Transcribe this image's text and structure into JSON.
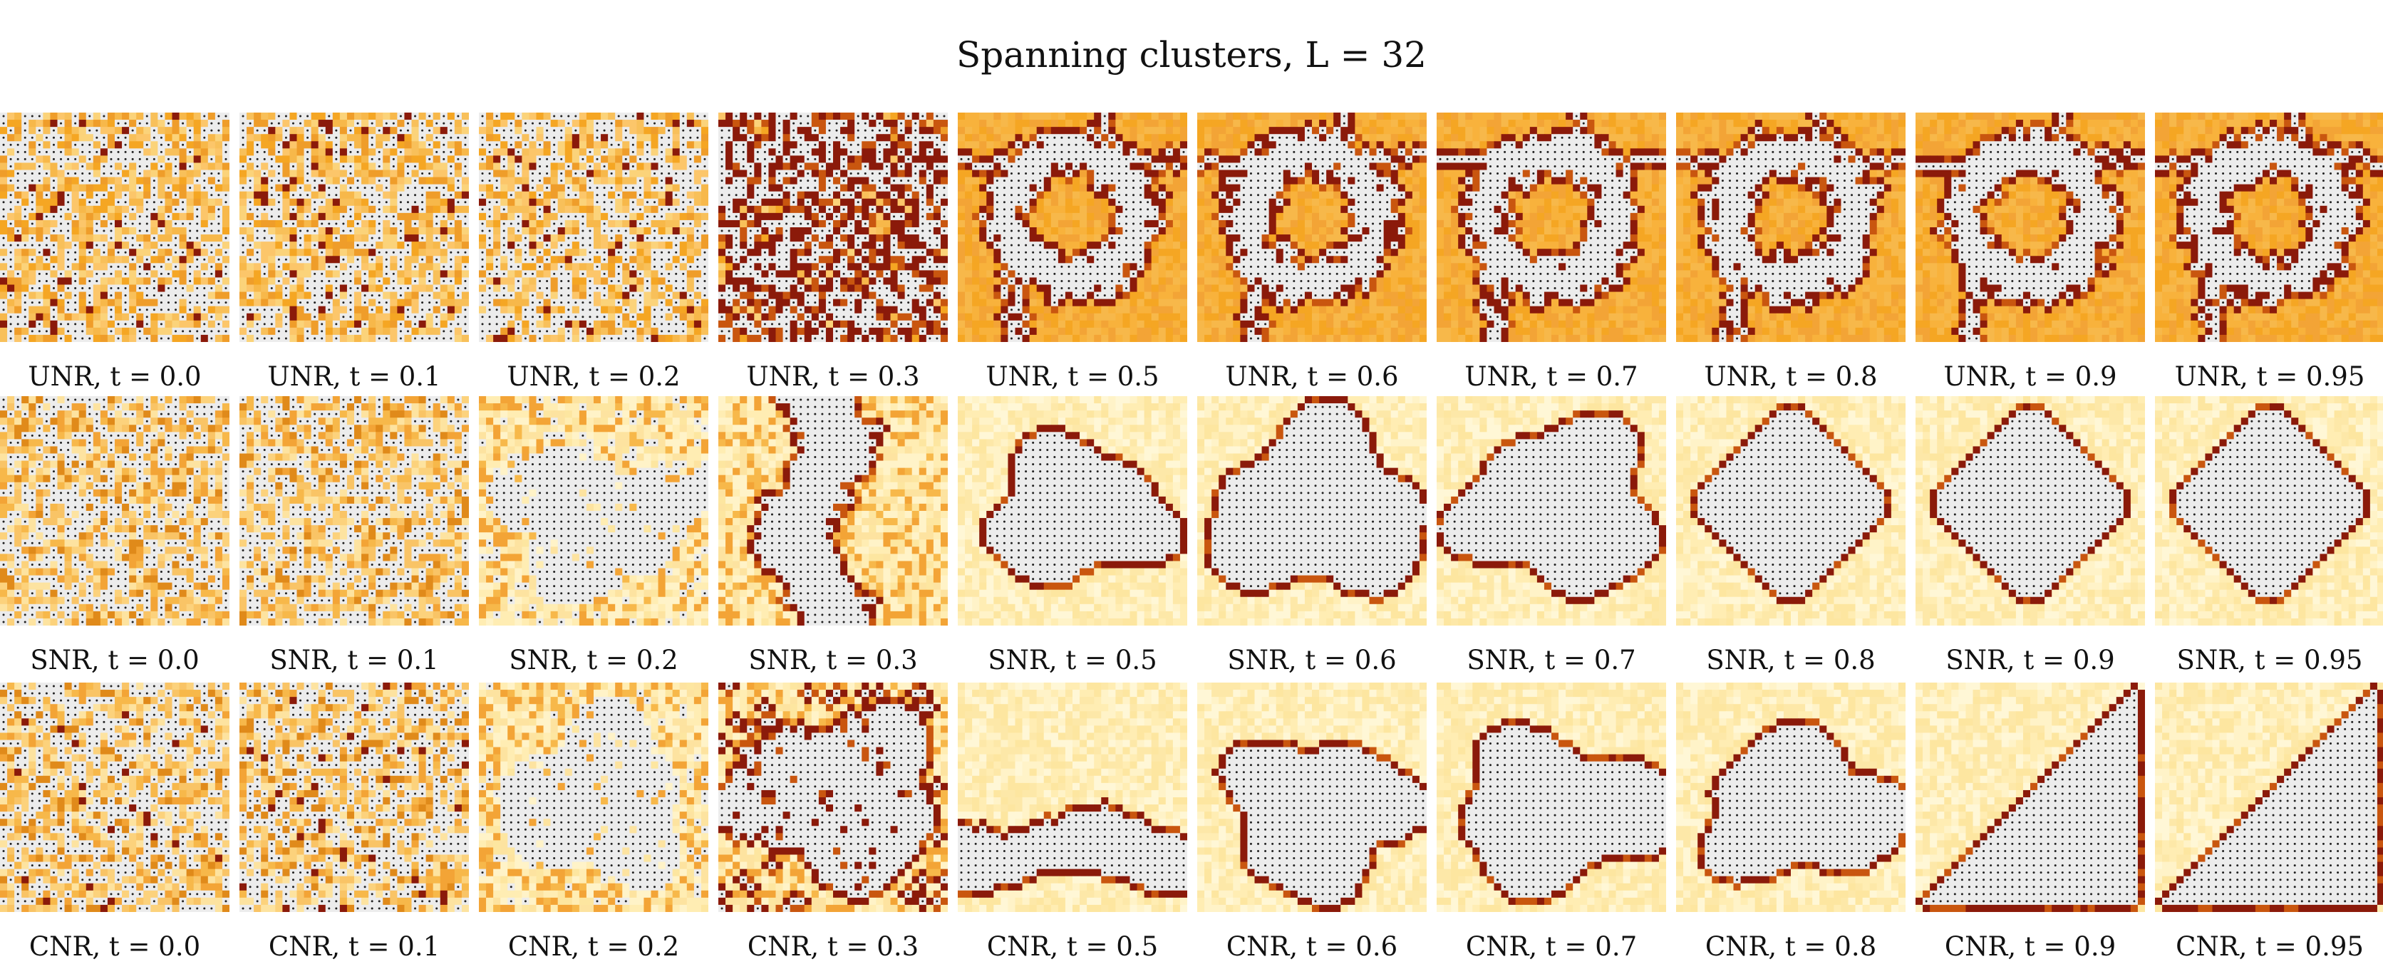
{
  "title": "Spanning clusters, L = 32",
  "lattice_size": 32,
  "rows": [
    {
      "model": "UNR",
      "captions": [
        "UNR, t = 0.0",
        "UNR, t = 0.1",
        "UNR, t = 0.2",
        "UNR, t = 0.3",
        "UNR, t = 0.5",
        "UNR, t = 0.6",
        "UNR, t = 0.7",
        "UNR, t = 0.8",
        "UNR, t = 0.9",
        "UNR, t = 0.95"
      ],
      "t_values": [
        0.0,
        0.1,
        0.2,
        0.3,
        0.5,
        0.6,
        0.7,
        0.8,
        0.9,
        0.95
      ],
      "cluster_shapes": [
        "random",
        "random",
        "random",
        "random",
        "fractal",
        "fractal",
        "fractal",
        "fractal",
        "fractal",
        "fractal"
      ]
    },
    {
      "model": "SNR",
      "captions": [
        "SNR, t = 0.0",
        "SNR, t = 0.1",
        "SNR, t = 0.2",
        "SNR, t = 0.3",
        "SNR, t = 0.5",
        "SNR, t = 0.6",
        "SNR, t = 0.7",
        "SNR, t = 0.8",
        "SNR, t = 0.9",
        "SNR, t = 0.95"
      ],
      "t_values": [
        0.0,
        0.1,
        0.2,
        0.3,
        0.5,
        0.6,
        0.7,
        0.8,
        0.9,
        0.95
      ],
      "cluster_shapes": [
        "random",
        "random",
        "blob",
        "vertical-strip",
        "blob",
        "blob",
        "blob",
        "octagon",
        "octagon",
        "octagon"
      ]
    },
    {
      "model": "CNR",
      "captions": [
        "CNR, t = 0.0",
        "CNR, t = 0.1",
        "CNR, t = 0.2",
        "CNR, t = 0.3",
        "CNR, t = 0.5",
        "CNR, t = 0.6",
        "CNR, t = 0.7",
        "CNR, t = 0.8",
        "CNR, t = 0.9",
        "CNR, t = 0.95"
      ],
      "t_values": [
        0.0,
        0.1,
        0.2,
        0.3,
        0.5,
        0.6,
        0.7,
        0.8,
        0.9,
        0.95
      ],
      "cluster_shapes": [
        "random",
        "random",
        "blob",
        "blob",
        "band",
        "blob",
        "blob",
        "blob",
        "triangle",
        "triangle"
      ]
    }
  ],
  "colors": {
    "cluster_fill": "#ececec",
    "cluster_dot": "#222222",
    "boundary": "#8b1a0a",
    "orange_light": "#fff0c0",
    "orange_mid": "#f7b84a",
    "orange_dark": "#e08a1a"
  }
}
